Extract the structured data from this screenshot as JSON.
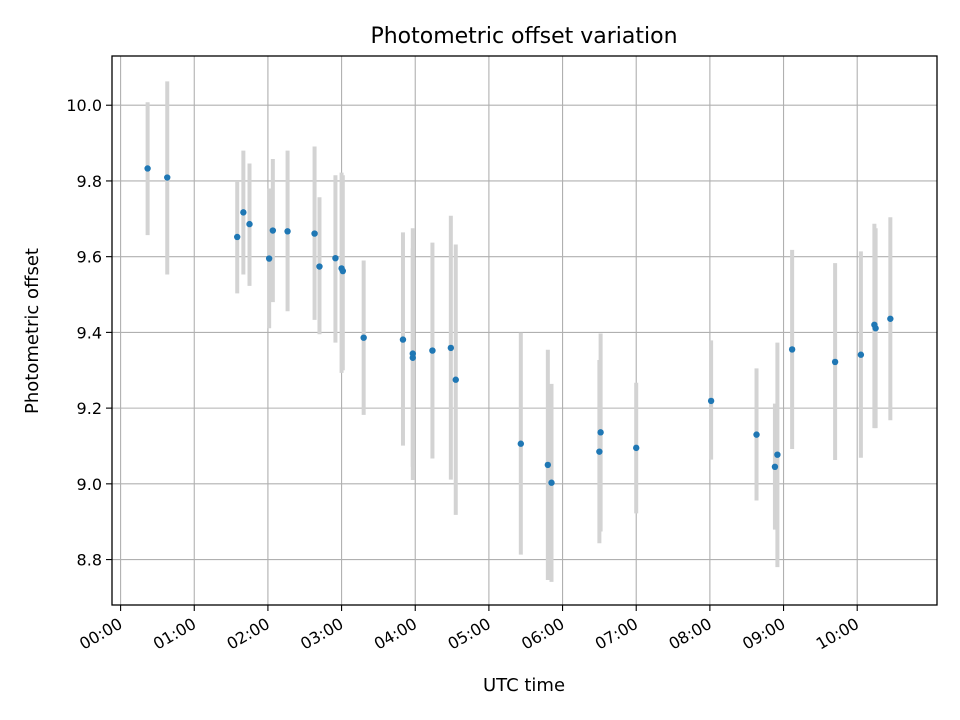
{
  "chart_data": {
    "type": "scatter",
    "title": "Photometric offset variation",
    "xlabel": "UTC time",
    "ylabel": "Photometric offset",
    "grid": true,
    "x_ticks": [
      "00:00",
      "01:00",
      "02:00",
      "03:00",
      "04:00",
      "05:00",
      "06:00",
      "07:00",
      "08:00",
      "09:00",
      "10:00"
    ],
    "y_ticks": [
      "8.8",
      "9.0",
      "9.2",
      "9.4",
      "9.6",
      "9.8",
      "10.0"
    ],
    "xlim": [
      "23:53",
      "11:05"
    ],
    "ylim": [
      8.68,
      10.13
    ],
    "colors": {
      "point": "#1f77b4",
      "errorbar": "#d3d3d3",
      "grid": "#b0b0b0"
    },
    "points": [
      {
        "x": "00:22",
        "y": 9.833,
        "low": 9.657,
        "high": 10.008
      },
      {
        "x": "00:38",
        "y": 9.809,
        "low": 9.553,
        "high": 10.063
      },
      {
        "x": "01:35",
        "y": 9.652,
        "low": 9.503,
        "high": 9.8
      },
      {
        "x": "01:40",
        "y": 9.717,
        "low": 9.553,
        "high": 9.88
      },
      {
        "x": "01:45",
        "y": 9.686,
        "low": 9.523,
        "high": 9.846
      },
      {
        "x": "02:01",
        "y": 9.595,
        "low": 9.411,
        "high": 9.78
      },
      {
        "x": "02:04",
        "y": 9.669,
        "low": 9.48,
        "high": 9.858
      },
      {
        "x": "02:16",
        "y": 9.667,
        "low": 9.456,
        "high": 9.88
      },
      {
        "x": "02:38",
        "y": 9.661,
        "low": 9.433,
        "high": 9.891
      },
      {
        "x": "02:42",
        "y": 9.574,
        "low": 9.395,
        "high": 9.757
      },
      {
        "x": "02:55",
        "y": 9.596,
        "low": 9.373,
        "high": 9.815
      },
      {
        "x": "03:00",
        "y": 9.569,
        "low": 9.293,
        "high": 9.822
      },
      {
        "x": "03:01",
        "y": 9.562,
        "low": 9.3,
        "high": 9.815
      },
      {
        "x": "03:18",
        "y": 9.386,
        "low": 9.182,
        "high": 9.59
      },
      {
        "x": "03:50",
        "y": 9.381,
        "low": 9.101,
        "high": 9.664
      },
      {
        "x": "03:58",
        "y": 9.344,
        "low": 9.01,
        "high": 9.675
      },
      {
        "x": "03:58",
        "y": 9.333,
        "low": 9.045,
        "high": 9.622
      },
      {
        "x": "04:14",
        "y": 9.352,
        "low": 9.067,
        "high": 9.637
      },
      {
        "x": "04:29",
        "y": 9.359,
        "low": 9.011,
        "high": 9.708
      },
      {
        "x": "04:33",
        "y": 9.275,
        "low": 8.918,
        "high": 9.632
      },
      {
        "x": "05:26",
        "y": 9.106,
        "low": 8.813,
        "high": 9.399
      },
      {
        "x": "05:48",
        "y": 9.05,
        "low": 8.746,
        "high": 9.354
      },
      {
        "x": "05:51",
        "y": 9.003,
        "low": 8.741,
        "high": 9.264
      },
      {
        "x": "06:30",
        "y": 9.085,
        "low": 8.843,
        "high": 9.327
      },
      {
        "x": "06:31",
        "y": 9.136,
        "low": 8.874,
        "high": 9.397
      },
      {
        "x": "07:00",
        "y": 9.095,
        "low": 8.922,
        "high": 9.267
      },
      {
        "x": "08:01",
        "y": 9.219,
        "low": 9.064,
        "high": 9.379
      },
      {
        "x": "08:38",
        "y": 9.13,
        "low": 8.956,
        "high": 9.305
      },
      {
        "x": "08:53",
        "y": 9.045,
        "low": 8.879,
        "high": 9.212
      },
      {
        "x": "08:55",
        "y": 9.077,
        "low": 8.78,
        "high": 9.373
      },
      {
        "x": "09:07",
        "y": 9.355,
        "low": 9.092,
        "high": 9.618
      },
      {
        "x": "09:42",
        "y": 9.322,
        "low": 9.063,
        "high": 9.583
      },
      {
        "x": "10:03",
        "y": 9.341,
        "low": 9.069,
        "high": 9.614
      },
      {
        "x": "10:14",
        "y": 9.42,
        "low": 9.147,
        "high": 9.687
      },
      {
        "x": "10:15",
        "y": 9.411,
        "low": 9.147,
        "high": 9.675
      },
      {
        "x": "10:27",
        "y": 9.436,
        "low": 9.168,
        "high": 9.704
      }
    ]
  }
}
